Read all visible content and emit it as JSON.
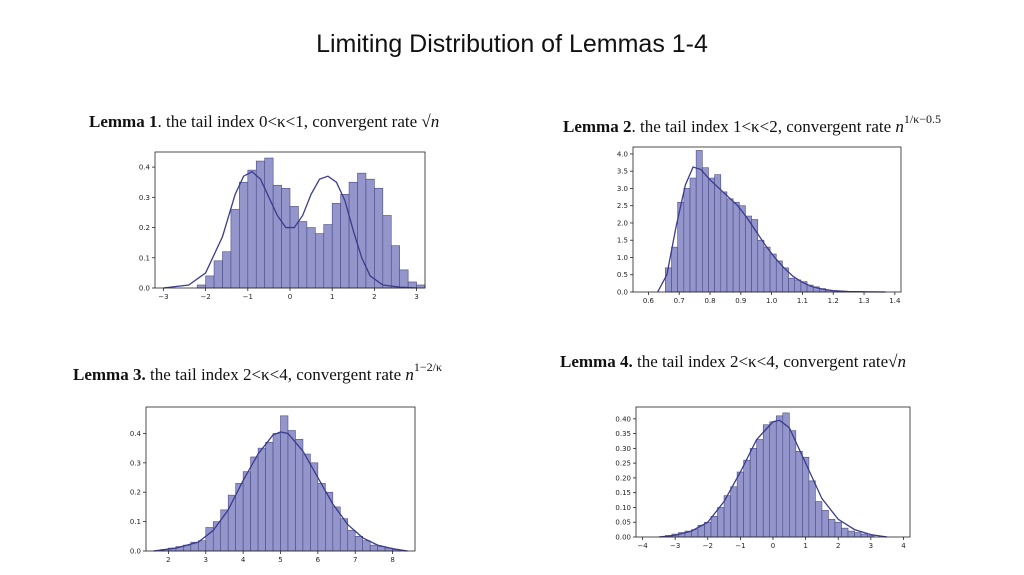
{
  "slide": {
    "title": "Limiting Distribution of Lemmas 1-4"
  },
  "colors": {
    "bar_fill": "#8e8fc8",
    "bar_edge": "#4b4c86",
    "curve": "#3a3c8c",
    "axes": "#222222"
  },
  "captions": [
    {
      "lead": "Lemma 1",
      "text": ". the tail index 0<κ<1, convergent rate ",
      "rate": "√n",
      "rate_sup": ""
    },
    {
      "lead": "Lemma 2",
      "text": ". the tail index 1<κ<2, convergent rate ",
      "rate": "n",
      "rate_sup": "1/κ−0.5"
    },
    {
      "lead": "Lemma 3.",
      "text": " the tail index 2<κ<4, convergent rate ",
      "rate": "n",
      "rate_sup": "1−2/κ"
    },
    {
      "lead": "Lemma 4.",
      "text": " the tail index 2<κ<4, convergent rate",
      "rate": "√n",
      "rate_sup": ""
    }
  ],
  "chart_data": [
    {
      "type": "bar",
      "xlim": [
        -3.2,
        3.2
      ],
      "ylim": [
        0,
        0.45
      ],
      "xticks": [
        -3,
        -2,
        -1,
        0,
        1,
        2,
        3
      ],
      "yticks": [
        0.0,
        0.1,
        0.2,
        0.3,
        0.4
      ],
      "ytick_labels": [
        "0.0",
        "0.1",
        "0.2",
        "0.3",
        "0.4"
      ],
      "bin_start": -2.2,
      "bin_width": 0.2,
      "values": [
        0.01,
        0.04,
        0.09,
        0.12,
        0.26,
        0.35,
        0.39,
        0.42,
        0.43,
        0.34,
        0.33,
        0.27,
        0.22,
        0.2,
        0.18,
        0.21,
        0.28,
        0.31,
        0.35,
        0.38,
        0.36,
        0.33,
        0.24,
        0.14,
        0.06,
        0.02,
        0.01
      ],
      "kde": [
        [
          -3,
          0
        ],
        [
          -2.4,
          0.01
        ],
        [
          -2,
          0.05
        ],
        [
          -1.6,
          0.17
        ],
        [
          -1.3,
          0.31
        ],
        [
          -1.1,
          0.37
        ],
        [
          -0.9,
          0.385
        ],
        [
          -0.7,
          0.36
        ],
        [
          -0.5,
          0.3
        ],
        [
          -0.3,
          0.24
        ],
        [
          -0.1,
          0.2
        ],
        [
          0.1,
          0.2
        ],
        [
          0.3,
          0.24
        ],
        [
          0.5,
          0.31
        ],
        [
          0.7,
          0.36
        ],
        [
          0.9,
          0.37
        ],
        [
          1.1,
          0.35
        ],
        [
          1.3,
          0.29
        ],
        [
          1.5,
          0.19
        ],
        [
          1.7,
          0.1
        ],
        [
          1.9,
          0.04
        ],
        [
          2.2,
          0.01
        ],
        [
          2.6,
          0.003
        ],
        [
          3,
          0
        ]
      ],
      "grid": false
    },
    {
      "type": "bar",
      "xlim": [
        0.55,
        1.42
      ],
      "ylim": [
        0,
        4.2
      ],
      "xticks": [
        0.6,
        0.7,
        0.8,
        0.9,
        1.0,
        1.1,
        1.2,
        1.3,
        1.4
      ],
      "xtick_labels": [
        "0.6",
        "0.7",
        "0.8",
        "0.9",
        "1.0",
        "1.1",
        "1.2",
        "1.3",
        "1.4"
      ],
      "yticks": [
        0,
        0.5,
        1.0,
        1.5,
        2.0,
        2.5,
        3.0,
        3.5,
        4.0
      ],
      "ytick_labels": [
        "0.0",
        "0.5",
        "1.0",
        "1.5",
        "2.0",
        "2.5",
        "3.0",
        "3.5",
        "4.0"
      ],
      "bin_start": 0.655,
      "bin_width": 0.02,
      "values": [
        0.7,
        1.3,
        2.6,
        3.0,
        3.3,
        4.1,
        3.6,
        3.3,
        3.4,
        2.9,
        2.7,
        2.6,
        2.5,
        2.2,
        2.1,
        1.5,
        1.3,
        1.1,
        0.9,
        0.7,
        0.4,
        0.35,
        0.3,
        0.2,
        0.15,
        0.1,
        0.05,
        0.04,
        0.03,
        0.02,
        0.02
      ],
      "kde": [
        [
          0.63,
          0
        ],
        [
          0.66,
          0.5
        ],
        [
          0.69,
          1.9
        ],
        [
          0.72,
          3.1
        ],
        [
          0.745,
          3.62
        ],
        [
          0.77,
          3.55
        ],
        [
          0.8,
          3.25
        ],
        [
          0.83,
          3.0
        ],
        [
          0.86,
          2.75
        ],
        [
          0.89,
          2.5
        ],
        [
          0.92,
          2.15
        ],
        [
          0.95,
          1.75
        ],
        [
          0.98,
          1.35
        ],
        [
          1.01,
          1.0
        ],
        [
          1.04,
          0.7
        ],
        [
          1.07,
          0.45
        ],
        [
          1.1,
          0.28
        ],
        [
          1.13,
          0.16
        ],
        [
          1.16,
          0.09
        ],
        [
          1.2,
          0.04
        ],
        [
          1.25,
          0.015
        ],
        [
          1.3,
          0.005
        ],
        [
          1.37,
          0
        ]
      ],
      "grid": false
    },
    {
      "type": "bar",
      "xlim": [
        1.4,
        8.6
      ],
      "ylim": [
        0,
        0.49
      ],
      "xticks": [
        2,
        3,
        4,
        5,
        6,
        7,
        8
      ],
      "yticks": [
        0.0,
        0.1,
        0.2,
        0.3,
        0.4
      ],
      "ytick_labels": [
        "0.0",
        "0.1",
        "0.2",
        "0.3",
        "0.4"
      ],
      "bin_start": 1.8,
      "bin_width": 0.2,
      "values": [
        0.005,
        0.01,
        0.015,
        0.02,
        0.03,
        0.035,
        0.08,
        0.1,
        0.14,
        0.19,
        0.23,
        0.27,
        0.32,
        0.35,
        0.37,
        0.4,
        0.46,
        0.41,
        0.38,
        0.33,
        0.3,
        0.23,
        0.2,
        0.15,
        0.11,
        0.07,
        0.05,
        0.035,
        0.02,
        0.015,
        0.01,
        0.005
      ],
      "kde": [
        [
          1.6,
          0
        ],
        [
          2.2,
          0.01
        ],
        [
          2.8,
          0.03
        ],
        [
          3.2,
          0.07
        ],
        [
          3.6,
          0.14
        ],
        [
          4.0,
          0.24
        ],
        [
          4.4,
          0.33
        ],
        [
          4.8,
          0.395
        ],
        [
          5.0,
          0.405
        ],
        [
          5.2,
          0.4
        ],
        [
          5.6,
          0.34
        ],
        [
          6.0,
          0.25
        ],
        [
          6.4,
          0.16
        ],
        [
          6.8,
          0.09
        ],
        [
          7.2,
          0.045
        ],
        [
          7.6,
          0.02
        ],
        [
          8.0,
          0.008
        ],
        [
          8.4,
          0
        ]
      ],
      "grid": false
    },
    {
      "type": "bar",
      "xlim": [
        -4.2,
        4.2
      ],
      "ylim": [
        0,
        0.44
      ],
      "xticks": [
        -4,
        -3,
        -2,
        -1,
        0,
        1,
        2,
        3,
        4
      ],
      "yticks": [
        0.0,
        0.05,
        0.1,
        0.15,
        0.2,
        0.25,
        0.3,
        0.35,
        0.4
      ],
      "ytick_labels": [
        "0.00",
        "0.05",
        "0.10",
        "0.15",
        "0.20",
        "0.25",
        "0.30",
        "0.35",
        "0.40"
      ],
      "bin_start": -3.3,
      "bin_width": 0.2,
      "values": [
        0.005,
        0.01,
        0.015,
        0.02,
        0.025,
        0.04,
        0.05,
        0.07,
        0.1,
        0.14,
        0.17,
        0.22,
        0.26,
        0.3,
        0.33,
        0.38,
        0.39,
        0.41,
        0.42,
        0.36,
        0.29,
        0.27,
        0.19,
        0.12,
        0.09,
        0.06,
        0.05,
        0.03,
        0.02,
        0.015,
        0.01,
        0.005
      ],
      "kde": [
        [
          -3.5,
          0
        ],
        [
          -3,
          0.006
        ],
        [
          -2.5,
          0.02
        ],
        [
          -2,
          0.05
        ],
        [
          -1.5,
          0.12
        ],
        [
          -1.0,
          0.22
        ],
        [
          -0.5,
          0.33
        ],
        [
          0,
          0.39
        ],
        [
          0.2,
          0.395
        ],
        [
          0.5,
          0.37
        ],
        [
          1.0,
          0.25
        ],
        [
          1.5,
          0.13
        ],
        [
          2.0,
          0.06
        ],
        [
          2.5,
          0.025
        ],
        [
          3.0,
          0.008
        ],
        [
          3.5,
          0
        ]
      ],
      "grid": false
    }
  ]
}
